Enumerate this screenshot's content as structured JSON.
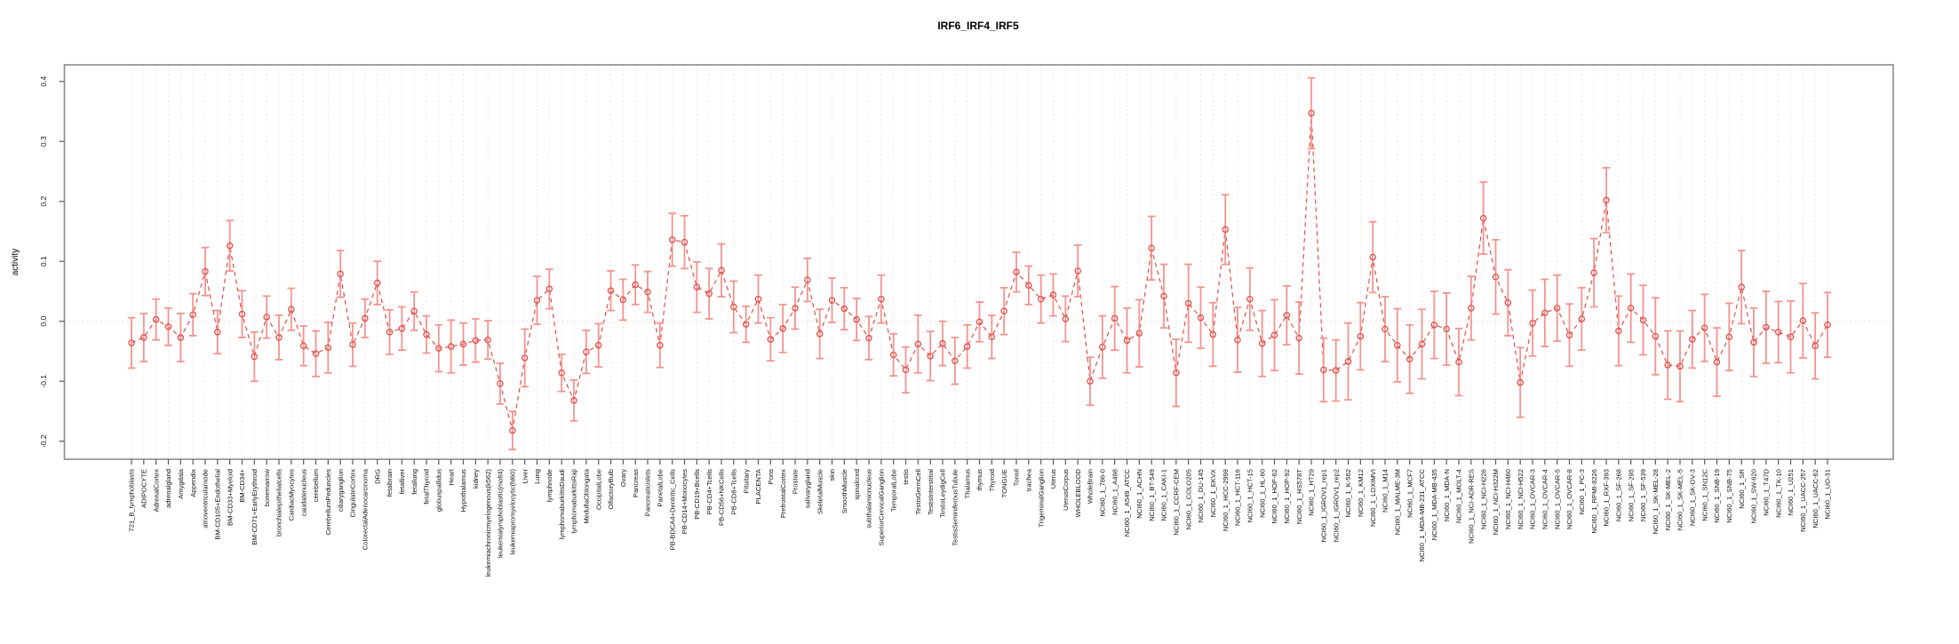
{
  "title": "IRF6_IRF4_IRF5",
  "chart_data": {
    "type": "line",
    "subtype": "points-with-error-bars",
    "title": "IRF6_IRF4_IRF5",
    "xlabel": "",
    "ylabel": "activity",
    "ylim": [
      -0.25,
      0.45
    ],
    "yticks": [
      -0.2,
      -0.1,
      0.0,
      0.1,
      0.2,
      0.3,
      0.4
    ],
    "grid": "light dotted vertical line at every category; dotted horizontal line at y=0",
    "legend_position": "none",
    "colors": {
      "point_and_line": "#e0504a",
      "error_bar": "#f4938e",
      "box": "#8c8c8c",
      "tick": "#5a5a5a",
      "gridline": "#e3e3e3",
      "zero_line": "#eddada"
    },
    "categories": [
      "721_B_lymphoblasts",
      "ADIPOCYTE",
      "AdrenalCortex",
      "adrenalgland",
      "Amygdala",
      "Appendix",
      "atrioventricularnode",
      "BM-CD105+Endothelial",
      "BM-CD33+Myeloid",
      "BM-CD34+",
      "BM-CD71+EarlyErythroid",
      "bonemarrow",
      "bronchialepithelialcells",
      "CardiacMyocytes",
      "caudatenucleus",
      "cerebellum",
      "CerebellumPeduncles",
      "ciliaryganglion",
      "CingulateCortex",
      "ColorectalAdenocarcinoma",
      "DRG",
      "fetalbrain",
      "fetalliver",
      "fetallung",
      "fetalThyroid",
      "globuspallidus",
      "Heart",
      "Hypothalamus",
      "kidney",
      "leukemiachronicmyelogenous(k562)",
      "leukemialymphoblastic(molt4)",
      "leukemiapromyelocytic(hl60)",
      "Liver",
      "Lung",
      "lymphnode",
      "lymphomaburkittsDaudi",
      "lymphomaburkittsRaji",
      "MedullaOblongata",
      "OccipitalLobe",
      "OlfactoryBulb",
      "Ovary",
      "Pancreas",
      "Pancreaticislets",
      "ParietalLobe",
      "PB-BDCA4+Dentritic_Cells",
      "PB-CD14+Monocytes",
      "PB-CD19+Bcells",
      "PB-CD4+Tcells",
      "PB-CD56+NKCells",
      "PB-CD8+Tcells",
      "Pituitary",
      "PLACENTA",
      "Pons",
      "PrefrontalCortex",
      "Prostate",
      "salivarygland",
      "SkeletalMuscle",
      "skin",
      "SmoothMuscle",
      "spinalcord",
      "subthalamicnucleus",
      "SuperiorCervicalGanglion",
      "TemporalLobe",
      "testis",
      "TestisGermCell",
      "TestisInterstitial",
      "TestisLeydigCell",
      "TestisSeminiferousTubule",
      "Thalamus",
      "thymus",
      "Thyroid",
      "TONGUE",
      "Tonsil",
      "trachea",
      "TrigeminalGanglion",
      "Uterus",
      "UterusCorpus",
      "WHOLEBLOOD",
      "WholeBrain",
      "NCI60_1_786-0",
      "NCI60_1_A498",
      "NCI60_1_A549_ATCC",
      "NCI60_1_ACHN",
      "NCI60_1_BT-549",
      "NCI60_1_CAKI-1",
      "NCI60_1_CCRF-CEM",
      "NCI60_1_COLO205",
      "NCI60_1_DU-145",
      "NCI60_1_EKVX",
      "NCI60_1_HCC-2998",
      "NCI60_1_HCT-116",
      "NCI60_1_HCT-15",
      "NCI60_1_HL-60",
      "NCI60_1_HOP-62",
      "NCI60_1_HOP-92",
      "NCI60_1_HS578T",
      "NCI60_1_HT29",
      "NCI60_1_IGROV1_rep1",
      "NCI60_1_IGROV1_rep2",
      "NCI60_1_K-562",
      "NCI60_1_KM12",
      "NCI60_1_LOXIMVI",
      "NCI60_1_M14",
      "NCI60_1_MALME-3M",
      "NCI60_1_MCF7",
      "NCI60_1_MDA-MB-231_ATCC",
      "NCI60_1_MDA-MB-435",
      "NCI60_1_MDA-N",
      "NCI60_1_MOLT-4",
      "NCI60_1_NCI-ADR-RES",
      "NCI60_1_NCI-H226",
      "NCI60_1_NCI-H322M",
      "NCI60_1_NCI-H460",
      "NCI60_1_NCI-H522",
      "NCI60_1_OVCAR-3",
      "NCI60_1_OVCAR-4",
      "NCI60_1_OVCAR-5",
      "NCI60_1_OVCAR-8",
      "NCI60_1_PC-3",
      "NCI60_1_RPMI-8226",
      "NCI60_1_RXF-393",
      "NCI60_1_SF-268",
      "NCI60_1_SF-295",
      "NCI60_1_SF-539",
      "NCI60_1_SK-MEL-28",
      "NCI60_1_SK-MEL-2",
      "NCI60_1_SK-MEL-5",
      "NCI60_1_SK-OV-3",
      "NCI60_1_SN12C",
      "NCI60_1_SNB-19",
      "NCI60_1_SNB-75",
      "NCI60_1_SR",
      "NCI60_1_SW-620",
      "NCI60_1_T47D",
      "NCI60_1_TK-10",
      "NCI60_1_U251",
      "NCI60_1_UACC-257",
      "NCI60_1_UACC-62",
      "NCI60_1_UO-31"
    ],
    "values": [
      -0.036,
      -0.027,
      0.003,
      -0.009,
      -0.027,
      0.011,
      0.083,
      -0.018,
      0.126,
      0.012,
      -0.059,
      0.007,
      -0.027,
      0.02,
      -0.041,
      -0.054,
      -0.044,
      0.079,
      -0.039,
      0.005,
      0.064,
      -0.018,
      -0.012,
      0.017,
      -0.022,
      -0.045,
      -0.042,
      -0.038,
      -0.032,
      -0.031,
      -0.104,
      -0.182,
      -0.061,
      0.035,
      0.054,
      -0.086,
      -0.132,
      -0.051,
      -0.04,
      0.051,
      0.036,
      0.061,
      0.049,
      -0.04,
      0.136,
      0.132,
      0.057,
      0.046,
      0.085,
      0.024,
      -0.005,
      0.037,
      -0.03,
      -0.012,
      0.022,
      0.069,
      -0.021,
      0.035,
      0.021,
      0.003,
      -0.028,
      0.037,
      -0.056,
      -0.081,
      -0.038,
      -0.058,
      -0.037,
      -0.066,
      -0.042,
      -0.001,
      -0.026,
      0.017,
      0.082,
      0.06,
      0.037,
      0.044,
      0.004,
      0.084,
      -0.1,
      -0.043,
      0.005,
      -0.032,
      -0.02,
      0.122,
      0.042,
      -0.086,
      0.03,
      0.006,
      -0.022,
      0.153,
      -0.031,
      0.037,
      -0.037,
      -0.023,
      0.01,
      -0.028,
      0.347,
      -0.081,
      -0.082,
      -0.067,
      -0.025,
      0.107,
      -0.013,
      -0.04,
      -0.063,
      -0.038,
      -0.006,
      -0.013,
      -0.068,
      0.022,
      0.172,
      0.074,
      0.031,
      -0.102,
      -0.003,
      0.014,
      0.022,
      -0.023,
      0.004,
      0.081,
      0.202,
      -0.016,
      0.022,
      0.002,
      -0.025,
      -0.073,
      -0.075,
      -0.03,
      -0.011,
      -0.068,
      -0.026,
      0.057,
      -0.035,
      -0.01,
      -0.018,
      -0.026,
      0.001,
      -0.041,
      -0.006
    ],
    "errors": [
      0.042,
      0.04,
      0.034,
      0.031,
      0.04,
      0.035,
      0.04,
      0.036,
      0.042,
      0.039,
      0.041,
      0.035,
      0.037,
      0.035,
      0.033,
      0.038,
      0.042,
      0.039,
      0.036,
      0.032,
      0.036,
      0.037,
      0.036,
      0.032,
      0.031,
      0.039,
      0.044,
      0.035,
      0.036,
      0.032,
      0.034,
      0.032,
      0.048,
      0.04,
      0.033,
      0.031,
      0.034,
      0.036,
      0.036,
      0.033,
      0.034,
      0.033,
      0.034,
      0.037,
      0.044,
      0.044,
      0.042,
      0.042,
      0.044,
      0.043,
      0.03,
      0.04,
      0.036,
      0.04,
      0.035,
      0.036,
      0.041,
      0.037,
      0.035,
      0.035,
      0.036,
      0.04,
      0.035,
      0.038,
      0.048,
      0.041,
      0.037,
      0.039,
      0.036,
      0.033,
      0.036,
      0.039,
      0.033,
      0.032,
      0.04,
      0.035,
      0.038,
      0.043,
      0.04,
      0.052,
      0.053,
      0.054,
      0.056,
      0.053,
      0.053,
      0.056,
      0.065,
      0.051,
      0.053,
      0.058,
      0.054,
      0.052,
      0.055,
      0.059,
      0.049,
      0.06,
      0.059,
      0.053,
      0.051,
      0.064,
      0.056,
      0.059,
      0.054,
      0.061,
      0.057,
      0.058,
      0.056,
      0.06,
      0.056,
      0.053,
      0.06,
      0.062,
      0.055,
      0.058,
      0.055,
      0.056,
      0.055,
      0.052,
      0.052,
      0.057,
      0.054,
      0.058,
      0.057,
      0.058,
      0.064,
      0.057,
      0.059,
      0.048,
      0.056,
      0.057,
      0.056,
      0.061,
      0.057,
      0.06,
      0.051,
      0.06,
      0.062,
      0.055,
      0.054
    ]
  }
}
